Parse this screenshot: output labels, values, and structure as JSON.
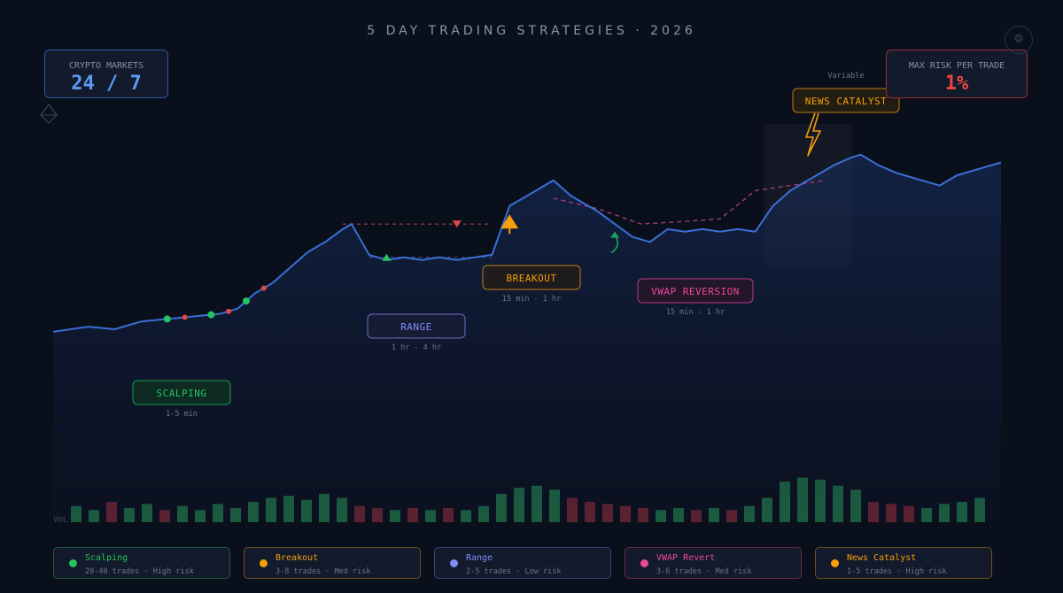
{
  "title": "5 DAY TRADING STRATEGIES · 2026",
  "kpis": {
    "left": {
      "label": "CRYPTO MARKETS",
      "value": "24 / 7"
    },
    "right": {
      "label": "MAX RISK PER TRADE",
      "value": "1%"
    }
  },
  "icons": {
    "gear": "⚙",
    "settings_icon": "gear-icon",
    "diamond_icon": "ethereum-diamond-icon",
    "lightning_icon": "lightning-icon"
  },
  "colors": {
    "background": "#0a0f1c",
    "price_line": "#3b6fd4",
    "up_volume": "#1f6b43",
    "down_volume": "#6e2430",
    "scalping": "#22c55e",
    "breakout": "#f59e0b",
    "range": "#818cf8",
    "vwap": "#ec4899",
    "news": "#f59e0b"
  },
  "legend": [
    {
      "name": "Scalping",
      "sub": "20-40 trades · High risk",
      "color": "#22c55e"
    },
    {
      "name": "Breakout",
      "sub": "3-8 trades · Med risk",
      "color": "#f59e0b"
    },
    {
      "name": "Range",
      "sub": "2-5 trades · Low risk",
      "color": "#818cf8"
    },
    {
      "name": "VWAP Revert",
      "sub": "3-6 trades · Med risk",
      "color": "#ec4899"
    },
    {
      "name": "News Catalyst",
      "sub": "1-5 trades · High risk",
      "color": "#f59e0b"
    }
  ],
  "chart_data": {
    "type": "line",
    "title": "",
    "xlabel": "",
    "ylabel": "",
    "grid": false,
    "price": [
      [
        0,
        19
      ],
      [
        4,
        21
      ],
      [
        7,
        20
      ],
      [
        10,
        23
      ],
      [
        13,
        24
      ],
      [
        16,
        25
      ],
      [
        19,
        26
      ],
      [
        21,
        28
      ],
      [
        23,
        34
      ],
      [
        25,
        38
      ],
      [
        29,
        50
      ],
      [
        31,
        54
      ],
      [
        33,
        59
      ],
      [
        34,
        61
      ],
      [
        36,
        49
      ],
      [
        38,
        47
      ],
      [
        40,
        48
      ],
      [
        42,
        47
      ],
      [
        44,
        48
      ],
      [
        46,
        47
      ],
      [
        48,
        48
      ],
      [
        50,
        49
      ],
      [
        52,
        68
      ],
      [
        54,
        72
      ],
      [
        57,
        78
      ],
      [
        59,
        72
      ],
      [
        62,
        66
      ],
      [
        64,
        61
      ],
      [
        66,
        56
      ],
      [
        68,
        54
      ],
      [
        70,
        59
      ],
      [
        72,
        58
      ],
      [
        74,
        59
      ],
      [
        76,
        58
      ],
      [
        78,
        59
      ],
      [
        80,
        58
      ],
      [
        82,
        68
      ],
      [
        84,
        74
      ],
      [
        86,
        78
      ],
      [
        89,
        84
      ],
      [
        91,
        87
      ],
      [
        92,
        88
      ],
      [
        94,
        84
      ],
      [
        96,
        81
      ],
      [
        99,
        78
      ],
      [
        101,
        76
      ],
      [
        103,
        80
      ],
      [
        106,
        83
      ],
      [
        108,
        85
      ]
    ],
    "price_range": [
      0,
      100
    ],
    "x_range": [
      0,
      108
    ],
    "resistance_level": 61,
    "support_level": 48,
    "vwap_path": [
      [
        57,
        71
      ],
      [
        62,
        67
      ],
      [
        67,
        61
      ],
      [
        72,
        62
      ],
      [
        76,
        63
      ],
      [
        80,
        74
      ],
      [
        88,
        78
      ]
    ],
    "news_highlight": {
      "x0": 81,
      "x1": 91
    },
    "volume_label": "VOL",
    "volume": [
      {
        "v": 4,
        "up": true
      },
      {
        "v": 3,
        "up": true
      },
      {
        "v": 5,
        "up": false
      },
      {
        "v": 3.5,
        "up": true
      },
      {
        "v": 4.5,
        "up": true
      },
      {
        "v": 3,
        "up": false
      },
      {
        "v": 4,
        "up": true
      },
      {
        "v": 3,
        "up": true
      },
      {
        "v": 4.5,
        "up": true
      },
      {
        "v": 3.5,
        "up": true
      },
      {
        "v": 5,
        "up": true
      },
      {
        "v": 6,
        "up": true
      },
      {
        "v": 6.5,
        "up": true
      },
      {
        "v": 5.5,
        "up": true
      },
      {
        "v": 7,
        "up": true
      },
      {
        "v": 6,
        "up": true
      },
      {
        "v": 4,
        "up": false
      },
      {
        "v": 3.5,
        "up": false
      },
      {
        "v": 3,
        "up": true
      },
      {
        "v": 3.5,
        "up": false
      },
      {
        "v": 3,
        "up": true
      },
      {
        "v": 3.5,
        "up": false
      },
      {
        "v": 3,
        "up": true
      },
      {
        "v": 4,
        "up": true
      },
      {
        "v": 7,
        "up": true
      },
      {
        "v": 8.5,
        "up": true
      },
      {
        "v": 9,
        "up": true
      },
      {
        "v": 8,
        "up": true
      },
      {
        "v": 6,
        "up": false
      },
      {
        "v": 5,
        "up": false
      },
      {
        "v": 4.5,
        "up": false
      },
      {
        "v": 4,
        "up": false
      },
      {
        "v": 3.5,
        "up": false
      },
      {
        "v": 3,
        "up": true
      },
      {
        "v": 3.5,
        "up": true
      },
      {
        "v": 3,
        "up": false
      },
      {
        "v": 3.5,
        "up": true
      },
      {
        "v": 3,
        "up": false
      },
      {
        "v": 4,
        "up": true
      },
      {
        "v": 6,
        "up": true
      },
      {
        "v": 10,
        "up": true
      },
      {
        "v": 11,
        "up": true
      },
      {
        "v": 10.5,
        "up": true
      },
      {
        "v": 9,
        "up": true
      },
      {
        "v": 8,
        "up": true
      },
      {
        "v": 5,
        "up": false
      },
      {
        "v": 4.5,
        "up": false
      },
      {
        "v": 4,
        "up": false
      },
      {
        "v": 3.5,
        "up": true
      },
      {
        "v": 4.5,
        "up": true
      },
      {
        "v": 5,
        "up": true
      },
      {
        "v": 6,
        "up": true
      }
    ],
    "volume_max": 12,
    "scalp_markers": [
      {
        "x": 13,
        "type": "buy"
      },
      {
        "x": 15,
        "type": "sell"
      },
      {
        "x": 18,
        "type": "buy"
      },
      {
        "x": 20,
        "type": "sell"
      },
      {
        "x": 22,
        "type": "buy"
      },
      {
        "x": 24,
        "type": "sell"
      }
    ],
    "annotations": [
      {
        "key": "scalping",
        "label": "SCALPING",
        "time": "1-5 min",
        "x": 16,
        "y": 7,
        "color": "#22c55e"
      },
      {
        "key": "range",
        "label": "RANGE",
        "time": "1 hr - 4 hr",
        "x": 42,
        "y": 36,
        "color": "#818cf8"
      },
      {
        "key": "breakout",
        "label": "BREAKOUT",
        "time": "15 min - 1 hr",
        "x": 52,
        "y": 44,
        "color": "#f59e0b"
      },
      {
        "key": "vwap",
        "label": "VWAP REVERSION",
        "time": "15 min - 1 hr",
        "x": 68,
        "y": 41,
        "color": "#ec4899"
      },
      {
        "key": "news",
        "label": "NEWS CATALYST",
        "time": "Variable",
        "x": 83,
        "y": 97,
        "color": "#f59e0b"
      }
    ]
  }
}
